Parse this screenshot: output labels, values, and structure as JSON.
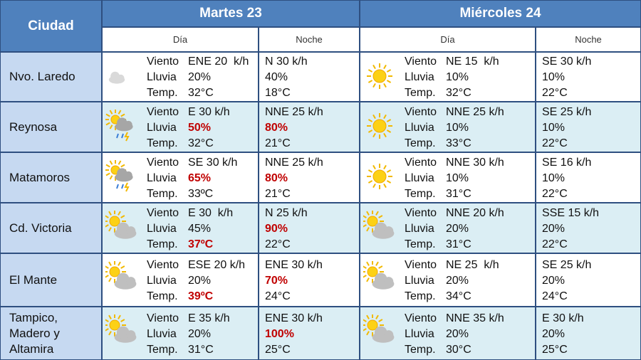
{
  "header": {
    "city": "Ciudad",
    "days": [
      {
        "title": "Martes 23",
        "day": "Día",
        "night": "Noche"
      },
      {
        "title": "Miércoles 24",
        "day": "Día",
        "night": "Noche"
      }
    ]
  },
  "rows": [
    {
      "city": "Nvo. Laredo",
      "days": [
        {
          "icon": "cloud",
          "day": [
            {
              "label": "Viento",
              "value": "ENE 20  k/h"
            },
            {
              "label": "Lluvia",
              "value": "20%"
            },
            {
              "label": "Temp.",
              "value": "32°C"
            }
          ],
          "night": [
            {
              "value": "N 30 k/h"
            },
            {
              "value": "40%"
            },
            {
              "value": "18°C"
            }
          ]
        },
        {
          "icon": "sun",
          "day": [
            {
              "label": "Viento",
              "value": "NE 15  k/h"
            },
            {
              "label": "Lluvia",
              "value": "10%"
            },
            {
              "label": "Temp.",
              "value": "32°C"
            }
          ],
          "night": [
            {
              "value": "SE 30 k/h"
            },
            {
              "value": "10%"
            },
            {
              "value": "22°C"
            }
          ]
        }
      ]
    },
    {
      "city": "Reynosa",
      "days": [
        {
          "icon": "storm",
          "day": [
            {
              "label": "Viento",
              "value": "E 30 k/h"
            },
            {
              "label": "Lluvia",
              "value": "50%",
              "highlight": true
            },
            {
              "label": "Temp.",
              "value": "32°C"
            }
          ],
          "night": [
            {
              "value": "NNE 25 k/h"
            },
            {
              "value": "80%",
              "highlight": true
            },
            {
              "value": "21°C"
            }
          ]
        },
        {
          "icon": "sun",
          "day": [
            {
              "label": "Viento",
              "value": "NNE 25 k/h"
            },
            {
              "label": "Lluvia",
              "value": "10%"
            },
            {
              "label": "Temp.",
              "value": "33°C"
            }
          ],
          "night": [
            {
              "value": "SE 25 k/h"
            },
            {
              "value": "10%"
            },
            {
              "value": "22°C"
            }
          ]
        }
      ]
    },
    {
      "city": "Matamoros",
      "days": [
        {
          "icon": "storm",
          "day": [
            {
              "label": "Viento",
              "value": "SE 30 k/h"
            },
            {
              "label": "Lluvia",
              "value": "65%",
              "highlight": true
            },
            {
              "label": "Temp.",
              "value": "33ºC"
            }
          ],
          "night": [
            {
              "value": "NNE 25 k/h"
            },
            {
              "value": "80%",
              "highlight": true
            },
            {
              "value": "21°C"
            }
          ]
        },
        {
          "icon": "sun",
          "day": [
            {
              "label": "Viento",
              "value": "NNE 30 k/h"
            },
            {
              "label": "Lluvia",
              "value": "10%"
            },
            {
              "label": "Temp.",
              "value": "31°C"
            }
          ],
          "night": [
            {
              "value": "SE 16 k/h"
            },
            {
              "value": "10%"
            },
            {
              "value": "22°C"
            }
          ]
        }
      ]
    },
    {
      "city": "Cd. Victoria",
      "days": [
        {
          "icon": "partly",
          "day": [
            {
              "label": "Viento",
              "value": "E 30  k/h"
            },
            {
              "label": "Lluvia",
              "value": "45%"
            },
            {
              "label": "Temp.",
              "value": "37ºC",
              "highlight": true
            }
          ],
          "night": [
            {
              "value": "N 25 k/h"
            },
            {
              "value": "90%",
              "highlight": true
            },
            {
              "value": "22°C"
            }
          ]
        },
        {
          "icon": "partly",
          "day": [
            {
              "label": "Viento",
              "value": "NNE 20 k/h"
            },
            {
              "label": "Lluvia",
              "value": "20%"
            },
            {
              "label": "Temp.",
              "value": "31°C"
            }
          ],
          "night": [
            {
              "value": "SSE 15 k/h"
            },
            {
              "value": "20%"
            },
            {
              "value": "22°C"
            }
          ]
        }
      ]
    },
    {
      "city": "El Mante",
      "days": [
        {
          "icon": "partly",
          "day": [
            {
              "label": "Viento",
              "value": "ESE 20 k/h"
            },
            {
              "label": "Lluvia",
              "value": "20%"
            },
            {
              "label": "Temp.",
              "value": "39ºC",
              "highlight": true
            }
          ],
          "night": [
            {
              "value": "ENE 30 k/h"
            },
            {
              "value": "70%",
              "highlight": true
            },
            {
              "value": "24°C"
            }
          ]
        },
        {
          "icon": "partly",
          "day": [
            {
              "label": "Viento",
              "value": "NE 25  k/h"
            },
            {
              "label": "Lluvia",
              "value": "20%"
            },
            {
              "label": "Temp.",
              "value": "34°C"
            }
          ],
          "night": [
            {
              "value": "SE 25 k/h"
            },
            {
              "value": "20%"
            },
            {
              "value": "24°C"
            }
          ]
        }
      ]
    },
    {
      "city": "Tampico, Madero y Altamira",
      "days": [
        {
          "icon": "partly",
          "day": [
            {
              "label": "Viento",
              "value": "E 35 k/h"
            },
            {
              "label": "Lluvia",
              "value": "20%"
            },
            {
              "label": "Temp.",
              "value": "31°C"
            }
          ],
          "night": [
            {
              "value": "ENE 30 k/h"
            },
            {
              "value": "100%",
              "highlight": true
            },
            {
              "value": "25°C"
            }
          ]
        },
        {
          "icon": "partly",
          "day": [
            {
              "label": "Viento",
              "value": "NNE 35 k/h"
            },
            {
              "label": "Lluvia",
              "value": "20%"
            },
            {
              "label": "Temp.",
              "value": "30°C"
            }
          ],
          "night": [
            {
              "value": "E 30 k/h"
            },
            {
              "value": "20%"
            },
            {
              "value": "25°C"
            }
          ]
        }
      ]
    }
  ]
}
